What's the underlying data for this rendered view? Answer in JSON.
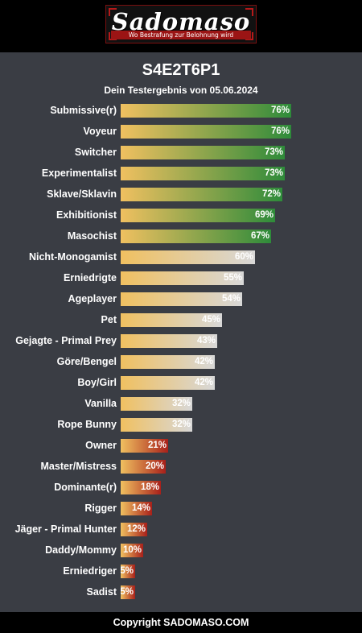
{
  "header": {
    "logo_text": "Sadomaso",
    "logo_tagline": "Wo Bestrafung zur Belohnung wird"
  },
  "page": {
    "title": "S4E2T6P1",
    "subtitle": "Dein Testergebnis von 05.06.2024"
  },
  "results": [
    {
      "label": "Submissive(r)",
      "value": 76,
      "display": "76%",
      "tier": "high"
    },
    {
      "label": "Voyeur",
      "value": 76,
      "display": "76%",
      "tier": "high"
    },
    {
      "label": "Switcher",
      "value": 73,
      "display": "73%",
      "tier": "high"
    },
    {
      "label": "Experimentalist",
      "value": 73,
      "display": "73%",
      "tier": "high"
    },
    {
      "label": "Sklave/Sklavin",
      "value": 72,
      "display": "72%",
      "tier": "high"
    },
    {
      "label": "Exhibitionist",
      "value": 69,
      "display": "69%",
      "tier": "high"
    },
    {
      "label": "Masochist",
      "value": 67,
      "display": "67%",
      "tier": "high"
    },
    {
      "label": "Nicht-Monogamist",
      "value": 60,
      "display": "60%",
      "tier": "mid"
    },
    {
      "label": "Erniedrigte",
      "value": 55,
      "display": "55%",
      "tier": "mid"
    },
    {
      "label": "Ageplayer",
      "value": 54,
      "display": "54%",
      "tier": "mid"
    },
    {
      "label": "Pet",
      "value": 45,
      "display": "45%",
      "tier": "mid"
    },
    {
      "label": "Gejagte - Primal Prey",
      "value": 43,
      "display": "43%",
      "tier": "mid"
    },
    {
      "label": "Göre/Bengel",
      "value": 42,
      "display": "42%",
      "tier": "mid"
    },
    {
      "label": "Boy/Girl",
      "value": 42,
      "display": "42%",
      "tier": "mid"
    },
    {
      "label": "Vanilla",
      "value": 32,
      "display": "32%",
      "tier": "mid"
    },
    {
      "label": "Rope Bunny",
      "value": 32,
      "display": "32%",
      "tier": "mid"
    },
    {
      "label": "Owner",
      "value": 21,
      "display": "21%",
      "tier": "low"
    },
    {
      "label": "Master/Mistress",
      "value": 20,
      "display": "20%",
      "tier": "low"
    },
    {
      "label": "Dominante(r)",
      "value": 18,
      "display": "18%",
      "tier": "low"
    },
    {
      "label": "Rigger",
      "value": 14,
      "display": "14%",
      "tier": "low"
    },
    {
      "label": "Jäger - Primal Hunter",
      "value": 12,
      "display": "12%",
      "tier": "low"
    },
    {
      "label": "Daddy/Mommy",
      "value": 10,
      "display": "10%",
      "tier": "low"
    },
    {
      "label": "Erniedriger",
      "value": 5,
      "display": "5%",
      "tier": "low"
    },
    {
      "label": "Sadist",
      "value": 5,
      "display": "5%",
      "tier": "low"
    }
  ],
  "colors": {
    "background": "#3a3d44",
    "bar_start": "#f0c060",
    "high_end": "#2e8b3a",
    "mid_end": "#d8d8d8",
    "low_end": "#a8201a"
  },
  "footer": {
    "copyright": "Copyright SADOMASO.COM"
  }
}
